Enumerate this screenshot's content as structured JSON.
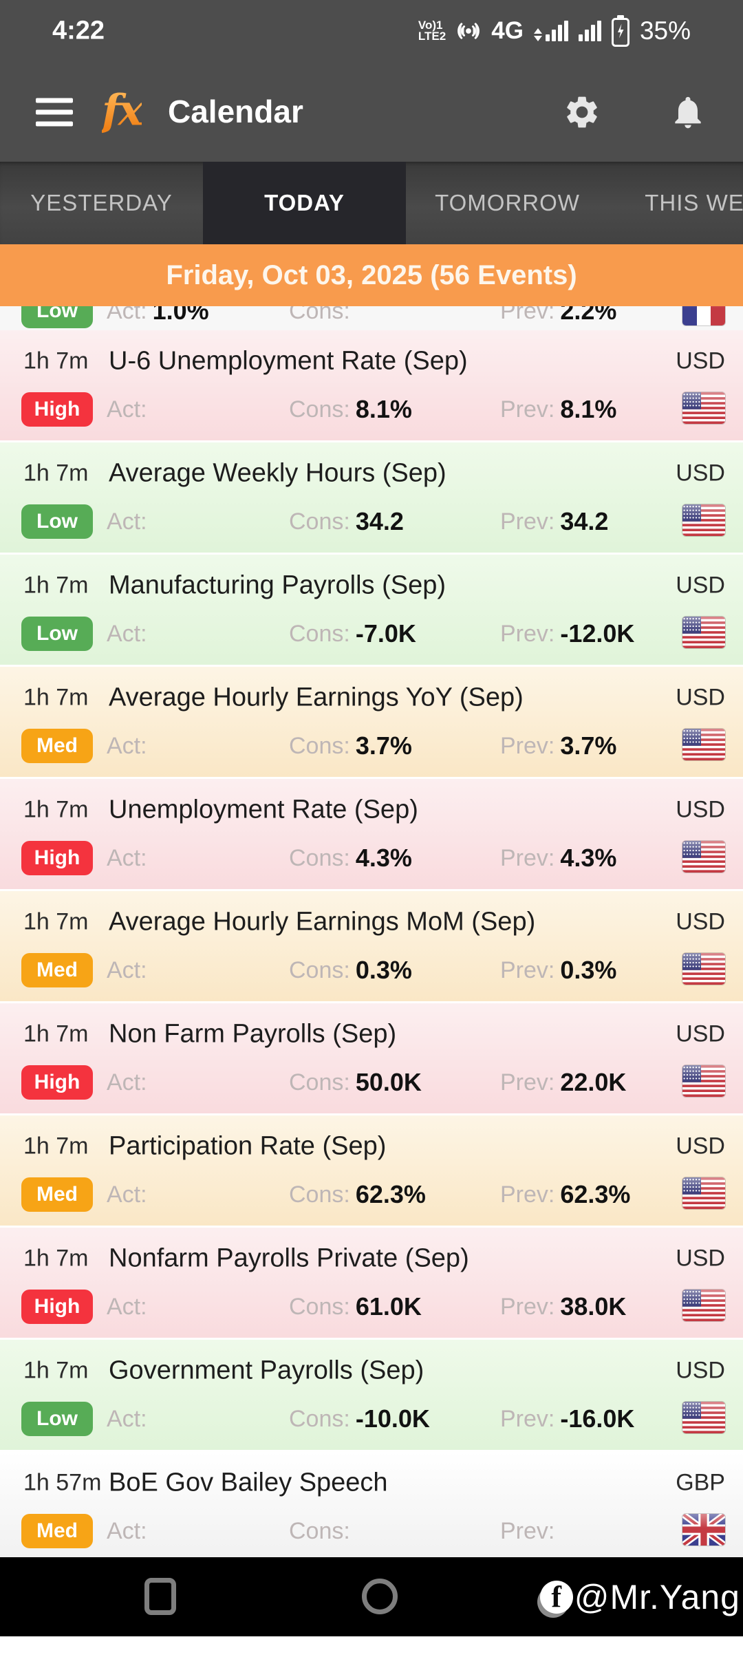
{
  "status_bar": {
    "time": "4:22",
    "volte_line1": "Vo)1",
    "volte_line2": "LTE2",
    "network": "4G",
    "battery_pct": "35%"
  },
  "app_bar": {
    "logo": "fx",
    "title": "Calendar"
  },
  "tab_bar": {
    "tabs": [
      {
        "label": "YESTERDAY",
        "active": false
      },
      {
        "label": "TODAY",
        "active": true
      },
      {
        "label": "TOMORROW",
        "active": false
      },
      {
        "label": "THIS WEEK",
        "active": false
      }
    ]
  },
  "date_banner": {
    "text": "Friday, Oct 03, 2025 (56 Events)"
  },
  "field_labels": {
    "act": "Act:",
    "cons": "Cons:",
    "prev": "Prev:"
  },
  "partial_event": {
    "time": "",
    "title": "",
    "currency": "",
    "importance": "Low",
    "act": "1.0%",
    "cons": "",
    "prev": "2.2%",
    "flag": "fr",
    "tint": "plain"
  },
  "events": [
    {
      "time": "1h 7m",
      "title": "U-6 Unemployment Rate (Sep)",
      "currency": "USD",
      "importance": "High",
      "act": "",
      "cons": "8.1%",
      "prev": "8.1%",
      "flag": "us",
      "tint": "pink"
    },
    {
      "time": "1h 7m",
      "title": "Average Weekly Hours (Sep)",
      "currency": "USD",
      "importance": "Low",
      "act": "",
      "cons": "34.2",
      "prev": "34.2",
      "flag": "us",
      "tint": "green"
    },
    {
      "time": "1h 7m",
      "title": "Manufacturing Payrolls (Sep)",
      "currency": "USD",
      "importance": "Low",
      "act": "",
      "cons": "-7.0K",
      "prev": "-12.0K",
      "flag": "us",
      "tint": "green"
    },
    {
      "time": "1h 7m",
      "title": "Average Hourly Earnings YoY (Sep)",
      "currency": "USD",
      "importance": "Med",
      "act": "",
      "cons": "3.7%",
      "prev": "3.7%",
      "flag": "us",
      "tint": "cream"
    },
    {
      "time": "1h 7m",
      "title": "Unemployment Rate (Sep)",
      "currency": "USD",
      "importance": "High",
      "act": "",
      "cons": "4.3%",
      "prev": "4.3%",
      "flag": "us",
      "tint": "pink"
    },
    {
      "time": "1h 7m",
      "title": "Average Hourly Earnings MoM (Sep)",
      "currency": "USD",
      "importance": "Med",
      "act": "",
      "cons": "0.3%",
      "prev": "0.3%",
      "flag": "us",
      "tint": "cream"
    },
    {
      "time": "1h 7m",
      "title": "Non Farm Payrolls (Sep)",
      "currency": "USD",
      "importance": "High",
      "act": "",
      "cons": "50.0K",
      "prev": "22.0K",
      "flag": "us",
      "tint": "pink"
    },
    {
      "time": "1h 7m",
      "title": "Participation Rate (Sep)",
      "currency": "USD",
      "importance": "Med",
      "act": "",
      "cons": "62.3%",
      "prev": "62.3%",
      "flag": "us",
      "tint": "cream"
    },
    {
      "time": "1h 7m",
      "title": "Nonfarm Payrolls Private (Sep)",
      "currency": "USD",
      "importance": "High",
      "act": "",
      "cons": "61.0K",
      "prev": "38.0K",
      "flag": "us",
      "tint": "pink"
    },
    {
      "time": "1h 7m",
      "title": "Government Payrolls (Sep)",
      "currency": "USD",
      "importance": "Low",
      "act": "",
      "cons": "-10.0K",
      "prev": "-16.0K",
      "flag": "us",
      "tint": "green"
    },
    {
      "time": "1h 57m",
      "title": "BoE Gov Bailey Speech",
      "currency": "GBP",
      "importance": "Med",
      "act": "",
      "cons": "",
      "prev": "",
      "flag": "gb",
      "tint": "plain"
    }
  ],
  "nav_bar": {
    "watermark": "@Mr.Yang"
  },
  "colors": {
    "importance": {
      "High": "#F4333E",
      "Med": "#F7A416",
      "Low": "#57AC56"
    },
    "banner": "#F89B4D",
    "header_bg": "#4D4D4D",
    "selected_tab_bg": "#26262B",
    "tints": {
      "pink": [
        "#FCEFF0",
        "#F9DBDE"
      ],
      "green": [
        "#EFFAEA",
        "#E0F4D9"
      ],
      "cream": [
        "#FDF5E5",
        "#FAE7C6"
      ],
      "plain": [
        "#FFFFFF",
        "#F1F1F1"
      ]
    }
  }
}
